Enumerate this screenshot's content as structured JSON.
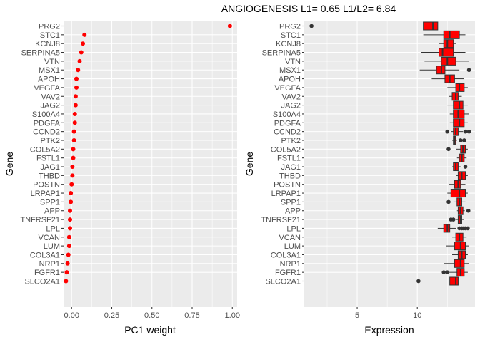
{
  "title": "ANGIOGENESIS L1= 0.65 L1/L2= 6.84",
  "colors": {
    "panel": "#ebebeb",
    "point": "#ff0000",
    "box_fill": "#ff0000",
    "box_line": "#333333"
  },
  "chart_data": [
    {
      "type": "scatter",
      "xlabel": "PC1 weight",
      "ylabel": "Gene",
      "xlim": [
        -0.05,
        1.03
      ],
      "xticks": [
        "0.00",
        "0.25",
        "0.50",
        "0.75",
        "1.00"
      ],
      "grid": true,
      "genes": [
        "PRG2",
        "STC1",
        "KCNJ8",
        "SERPINA5",
        "VTN",
        "MSX1",
        "APOH",
        "VEGFA",
        "VAV2",
        "JAG2",
        "S100A4",
        "PDGFA",
        "CCND2",
        "PTK2",
        "COL5A2",
        "FSTL1",
        "JAG1",
        "THBD",
        "POSTN",
        "LRPAP1",
        "SPP1",
        "APP",
        "TNFRSF21",
        "LPL",
        "VCAN",
        "LUM",
        "COL3A1",
        "NRP1",
        "FGFR1",
        "SLCO2A1"
      ],
      "values": [
        0.985,
        0.08,
        0.07,
        0.06,
        0.05,
        0.04,
        0.03,
        0.03,
        0.025,
        0.025,
        0.02,
        0.02,
        0.015,
        0.015,
        0.01,
        0.01,
        0.005,
        0.005,
        0.0,
        -0.005,
        -0.005,
        -0.01,
        -0.01,
        -0.01,
        -0.015,
        -0.015,
        -0.02,
        -0.025,
        -0.03,
        -0.035
      ]
    },
    {
      "type": "box",
      "xlabel": "Expression",
      "ylabel": "Gene",
      "xlim": [
        0.6,
        14.8
      ],
      "xticks": [
        "5",
        "10"
      ],
      "grid": true,
      "genes": [
        "PRG2",
        "STC1",
        "KCNJ8",
        "SERPINA5",
        "VTN",
        "MSX1",
        "APOH",
        "VEGFA",
        "VAV2",
        "JAG2",
        "S100A4",
        "PDGFA",
        "CCND2",
        "PTK2",
        "COL5A2",
        "FSTL1",
        "JAG1",
        "THBD",
        "POSTN",
        "LRPAP1",
        "SPP1",
        "APP",
        "TNFRSF21",
        "LPL",
        "VCAN",
        "LUM",
        "COL3A1",
        "NRP1",
        "FGFR1",
        "SLCO2A1"
      ],
      "boxes": [
        {
          "gene": "PRG2",
          "min": 10.3,
          "q1": 10.5,
          "median": 11.3,
          "q3": 11.7,
          "max": 11.9,
          "outliers": [
            1.2
          ]
        },
        {
          "gene": "STC1",
          "min": 10.5,
          "q1": 12.2,
          "median": 12.7,
          "q3": 13.5,
          "max": 14.0,
          "outliers": []
        },
        {
          "gene": "KCNJ8",
          "min": 11.8,
          "q1": 12.2,
          "median": 12.5,
          "q3": 13.0,
          "max": 13.2,
          "outliers": []
        },
        {
          "gene": "SERPINA5",
          "min": 10.3,
          "q1": 11.8,
          "median": 12.1,
          "q3": 13.0,
          "max": 14.0,
          "outliers": []
        },
        {
          "gene": "VTN",
          "min": 10.6,
          "q1": 12.0,
          "median": 12.5,
          "q3": 13.2,
          "max": 14.3,
          "outliers": []
        },
        {
          "gene": "MSX1",
          "min": 10.2,
          "q1": 11.6,
          "median": 12.0,
          "q3": 12.3,
          "max": 13.5,
          "outliers": [
            14.3
          ]
        },
        {
          "gene": "APOH",
          "min": 11.2,
          "q1": 12.3,
          "median": 12.7,
          "q3": 13.1,
          "max": 13.9,
          "outliers": []
        },
        {
          "gene": "VEGFA",
          "min": 12.5,
          "q1": 13.2,
          "median": 13.5,
          "q3": 13.9,
          "max": 14.2,
          "outliers": []
        },
        {
          "gene": "VAV2",
          "min": 12.6,
          "q1": 12.9,
          "median": 13.2,
          "q3": 13.4,
          "max": 13.7,
          "outliers": []
        },
        {
          "gene": "JAG2",
          "min": 12.5,
          "q1": 13.0,
          "median": 13.5,
          "q3": 13.8,
          "max": 14.2,
          "outliers": []
        },
        {
          "gene": "S100A4",
          "min": 12.7,
          "q1": 13.0,
          "median": 13.4,
          "q3": 13.9,
          "max": 14.3,
          "outliers": []
        },
        {
          "gene": "PDGFA",
          "min": 12.7,
          "q1": 13.0,
          "median": 13.5,
          "q3": 13.9,
          "max": 14.2,
          "outliers": []
        },
        {
          "gene": "CCND2",
          "min": 12.8,
          "q1": 13.0,
          "median": 13.2,
          "q3": 13.4,
          "max": 13.8,
          "outliers": [
            12.5,
            14.0,
            14.3
          ]
        },
        {
          "gene": "PTK2",
          "min": 12.9,
          "q1": 13.0,
          "median": 13.1,
          "q3": 13.2,
          "max": 13.3,
          "outliers": [
            13.6,
            13.9
          ]
        },
        {
          "gene": "COL5A2",
          "min": 13.2,
          "q1": 13.6,
          "median": 13.8,
          "q3": 14.0,
          "max": 14.2,
          "outliers": [
            12.6
          ]
        },
        {
          "gene": "FSTL1",
          "min": 13.3,
          "q1": 13.5,
          "median": 13.7,
          "q3": 13.9,
          "max": 14.1,
          "outliers": []
        },
        {
          "gene": "JAG1",
          "min": 12.9,
          "q1": 13.0,
          "median": 13.2,
          "q3": 13.4,
          "max": 13.6,
          "outliers": [
            14.0
          ]
        },
        {
          "gene": "THBD",
          "min": 13.2,
          "q1": 13.4,
          "median": 13.7,
          "q3": 14.0,
          "max": 14.2,
          "outliers": []
        },
        {
          "gene": "POSTN",
          "min": 12.6,
          "q1": 13.1,
          "median": 13.4,
          "q3": 13.6,
          "max": 14.0,
          "outliers": []
        },
        {
          "gene": "LRPAP1",
          "min": 12.5,
          "q1": 12.8,
          "median": 13.5,
          "q3": 14.0,
          "max": 14.2,
          "outliers": []
        },
        {
          "gene": "SPP1",
          "min": 13.0,
          "q1": 13.3,
          "median": 13.5,
          "q3": 13.7,
          "max": 14.0,
          "outliers": [
            12.6
          ]
        },
        {
          "gene": "APP",
          "min": 13.3,
          "q1": 13.4,
          "median": 13.6,
          "q3": 13.8,
          "max": 13.95,
          "outliers": [
            14.25
          ]
        },
        {
          "gene": "TNFRSF21",
          "min": 13.2,
          "q1": 13.4,
          "median": 13.6,
          "q3": 13.7,
          "max": 13.85,
          "outliers": [
            12.8,
            13.0
          ]
        },
        {
          "gene": "LPL",
          "min": 11.7,
          "q1": 12.2,
          "median": 12.5,
          "q3": 12.7,
          "max": 13.2,
          "outliers": [
            13.5,
            13.7,
            13.85,
            14.0,
            14.2
          ]
        },
        {
          "gene": "VCAN",
          "min": 12.9,
          "q1": 13.2,
          "median": 13.5,
          "q3": 13.8,
          "max": 14.1,
          "outliers": []
        },
        {
          "gene": "LUM",
          "min": 12.4,
          "q1": 13.1,
          "median": 13.6,
          "q3": 14.0,
          "max": 14.3,
          "outliers": []
        },
        {
          "gene": "COL3A1",
          "min": 12.9,
          "q1": 13.4,
          "median": 13.7,
          "q3": 14.0,
          "max": 14.2,
          "outliers": []
        },
        {
          "gene": "NRP1",
          "min": 12.2,
          "q1": 13.1,
          "median": 13.6,
          "q3": 13.9,
          "max": 14.3,
          "outliers": []
        },
        {
          "gene": "FGFR1",
          "min": 12.6,
          "q1": 13.3,
          "median": 13.6,
          "q3": 13.9,
          "max": 14.2,
          "outliers": [
            12.2,
            12.5
          ]
        },
        {
          "gene": "SLCO2A1",
          "min": 11.7,
          "q1": 12.7,
          "median": 13.2,
          "q3": 13.4,
          "max": 14.0,
          "outliers": [
            10.1
          ]
        }
      ]
    }
  ]
}
